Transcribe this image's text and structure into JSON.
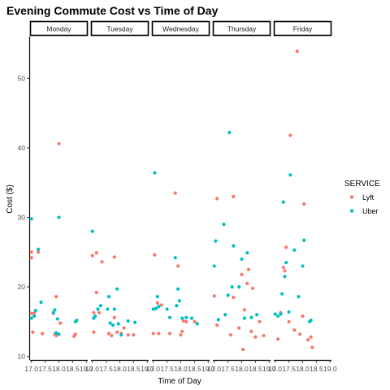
{
  "chart_data": {
    "type": "scatter",
    "title": "Evening Commute Cost vs Time of Day",
    "xlabel": "Time of Day",
    "ylabel": "Cost ($)",
    "ylim": [
      9.5,
      56
    ],
    "y_ticks": [
      10,
      20,
      30,
      40,
      50
    ],
    "xlim": [
      16.95,
      19.05
    ],
    "x_ticks": [
      17.0,
      17.5,
      18.0,
      18.5,
      19.0
    ],
    "x_tick_labels": [
      "17.0",
      "17.5",
      "18.0",
      "18.5",
      "19.0"
    ],
    "grid": false,
    "legend_title": "SERVICE",
    "legend_position": "right",
    "facets": [
      "Monday",
      "Tuesday",
      "Wednesday",
      "Thursday",
      "Friday"
    ],
    "series": [
      {
        "name": "Lyft",
        "color": "#F8766D",
        "points": [
          {
            "facet": 0,
            "x": 17.0,
            "y": 24.2
          },
          {
            "facet": 0,
            "x": 17.0,
            "y": 25.0
          },
          {
            "facet": 0,
            "x": 17.0,
            "y": 16.2
          },
          {
            "facet": 0,
            "x": 17.05,
            "y": 13.5
          },
          {
            "facet": 0,
            "x": 17.1,
            "y": 16.2
          },
          {
            "facet": 0,
            "x": 17.25,
            "y": 25.0
          },
          {
            "facet": 0,
            "x": 17.4,
            "y": 13.3
          },
          {
            "facet": 0,
            "x": 17.8,
            "y": 16.2
          },
          {
            "facet": 0,
            "x": 17.85,
            "y": 13.2
          },
          {
            "facet": 0,
            "x": 17.9,
            "y": 18.6
          },
          {
            "facet": 0,
            "x": 17.9,
            "y": 13.0
          },
          {
            "facet": 0,
            "x": 18.0,
            "y": 40.6
          },
          {
            "facet": 0,
            "x": 18.05,
            "y": 14.8
          },
          {
            "facet": 0,
            "x": 18.55,
            "y": 12.9
          },
          {
            "facet": 0,
            "x": 18.6,
            "y": 13.2
          },
          {
            "facet": 1,
            "x": 17.0,
            "y": 24.5
          },
          {
            "facet": 1,
            "x": 17.05,
            "y": 13.5
          },
          {
            "facet": 1,
            "x": 17.05,
            "y": 16.3
          },
          {
            "facet": 1,
            "x": 17.15,
            "y": 24.9
          },
          {
            "facet": 1,
            "x": 17.15,
            "y": 19.2
          },
          {
            "facet": 1,
            "x": 17.25,
            "y": 16.3
          },
          {
            "facet": 1,
            "x": 17.35,
            "y": 23.6
          },
          {
            "facet": 1,
            "x": 17.6,
            "y": 13.3
          },
          {
            "facet": 1,
            "x": 17.7,
            "y": 13.0
          },
          {
            "facet": 1,
            "x": 17.8,
            "y": 24.3
          },
          {
            "facet": 1,
            "x": 17.8,
            "y": 15.6
          },
          {
            "facet": 1,
            "x": 17.9,
            "y": 13.5
          },
          {
            "facet": 1,
            "x": 18.05,
            "y": 13.3
          },
          {
            "facet": 1,
            "x": 18.15,
            "y": 14.1
          },
          {
            "facet": 1,
            "x": 18.3,
            "y": 13.1
          },
          {
            "facet": 1,
            "x": 18.5,
            "y": 13.1
          },
          {
            "facet": 2,
            "x": 17.0,
            "y": 13.3
          },
          {
            "facet": 2,
            "x": 17.05,
            "y": 24.6
          },
          {
            "facet": 2,
            "x": 17.15,
            "y": 17.7
          },
          {
            "facet": 2,
            "x": 17.2,
            "y": 13.3
          },
          {
            "facet": 2,
            "x": 17.3,
            "y": 17.4
          },
          {
            "facet": 2,
            "x": 17.6,
            "y": 13.3
          },
          {
            "facet": 2,
            "x": 17.8,
            "y": 33.5
          },
          {
            "facet": 2,
            "x": 17.9,
            "y": 23.0
          },
          {
            "facet": 2,
            "x": 18.0,
            "y": 13.1
          },
          {
            "facet": 2,
            "x": 18.05,
            "y": 13.6
          },
          {
            "facet": 2,
            "x": 18.1,
            "y": 15.1
          },
          {
            "facet": 2,
            "x": 18.2,
            "y": 15.0
          },
          {
            "facet": 2,
            "x": 18.5,
            "y": 15.0
          },
          {
            "facet": 3,
            "x": 17.0,
            "y": 18.7
          },
          {
            "facet": 3,
            "x": 17.1,
            "y": 32.7
          },
          {
            "facet": 3,
            "x": 17.1,
            "y": 14.5
          },
          {
            "facet": 3,
            "x": 17.4,
            "y": 16.0
          },
          {
            "facet": 3,
            "x": 17.6,
            "y": 13.1
          },
          {
            "facet": 3,
            "x": 17.7,
            "y": 33.0
          },
          {
            "facet": 3,
            "x": 17.7,
            "y": 18.5
          },
          {
            "facet": 3,
            "x": 17.9,
            "y": 14.1
          },
          {
            "facet": 3,
            "x": 18.0,
            "y": 21.8
          },
          {
            "facet": 3,
            "x": 18.05,
            "y": 11.0
          },
          {
            "facet": 3,
            "x": 18.1,
            "y": 16.7
          },
          {
            "facet": 3,
            "x": 18.2,
            "y": 20.5
          },
          {
            "facet": 3,
            "x": 18.25,
            "y": 22.5
          },
          {
            "facet": 3,
            "x": 18.35,
            "y": 13.6
          },
          {
            "facet": 3,
            "x": 18.4,
            "y": 19.8
          },
          {
            "facet": 3,
            "x": 18.5,
            "y": 12.8
          },
          {
            "facet": 3,
            "x": 18.65,
            "y": 15.0
          },
          {
            "facet": 3,
            "x": 18.8,
            "y": 13.0
          },
          {
            "facet": 4,
            "x": 17.1,
            "y": 12.5
          },
          {
            "facet": 4,
            "x": 17.2,
            "y": 16.3
          },
          {
            "facet": 4,
            "x": 17.3,
            "y": 22.8
          },
          {
            "facet": 4,
            "x": 17.35,
            "y": 22.3
          },
          {
            "facet": 4,
            "x": 17.4,
            "y": 25.7
          },
          {
            "facet": 4,
            "x": 17.5,
            "y": 15.0
          },
          {
            "facet": 4,
            "x": 17.55,
            "y": 41.8
          },
          {
            "facet": 4,
            "x": 17.7,
            "y": 13.8
          },
          {
            "facet": 4,
            "x": 17.8,
            "y": 53.9
          },
          {
            "facet": 4,
            "x": 17.9,
            "y": 13.2
          },
          {
            "facet": 4,
            "x": 18.0,
            "y": 15.8
          },
          {
            "facet": 4,
            "x": 18.05,
            "y": 31.9
          },
          {
            "facet": 4,
            "x": 18.2,
            "y": 12.4
          },
          {
            "facet": 4,
            "x": 18.3,
            "y": 12.8
          },
          {
            "facet": 4,
            "x": 18.35,
            "y": 11.3
          }
        ]
      },
      {
        "name": "Uber",
        "color": "#00BFC4",
        "points": [
          {
            "facet": 0,
            "x": 17.0,
            "y": 15.5
          },
          {
            "facet": 0,
            "x": 17.0,
            "y": 29.8
          },
          {
            "facet": 0,
            "x": 17.1,
            "y": 15.8
          },
          {
            "facet": 0,
            "x": 17.15,
            "y": 16.6
          },
          {
            "facet": 0,
            "x": 17.25,
            "y": 25.4
          },
          {
            "facet": 0,
            "x": 17.35,
            "y": 17.8
          },
          {
            "facet": 0,
            "x": 17.8,
            "y": 16.3
          },
          {
            "facet": 0,
            "x": 17.85,
            "y": 16.7
          },
          {
            "facet": 0,
            "x": 17.9,
            "y": 13.4
          },
          {
            "facet": 0,
            "x": 17.95,
            "y": 15.4
          },
          {
            "facet": 0,
            "x": 18.0,
            "y": 30.0
          },
          {
            "facet": 0,
            "x": 18.0,
            "y": 13.2
          },
          {
            "facet": 0,
            "x": 18.6,
            "y": 15.0
          },
          {
            "facet": 0,
            "x": 18.65,
            "y": 15.2
          },
          {
            "facet": 1,
            "x": 17.0,
            "y": 28.0
          },
          {
            "facet": 1,
            "x": 17.05,
            "y": 15.5
          },
          {
            "facet": 1,
            "x": 17.1,
            "y": 15.8
          },
          {
            "facet": 1,
            "x": 17.2,
            "y": 16.8
          },
          {
            "facet": 1,
            "x": 17.3,
            "y": 17.3
          },
          {
            "facet": 1,
            "x": 17.55,
            "y": 16.8
          },
          {
            "facet": 1,
            "x": 17.6,
            "y": 18.6
          },
          {
            "facet": 1,
            "x": 17.65,
            "y": 14.8
          },
          {
            "facet": 1,
            "x": 17.75,
            "y": 14.5
          },
          {
            "facet": 1,
            "x": 17.8,
            "y": 16.8
          },
          {
            "facet": 1,
            "x": 17.9,
            "y": 19.7
          },
          {
            "facet": 1,
            "x": 17.95,
            "y": 14.7
          },
          {
            "facet": 1,
            "x": 18.05,
            "y": 13.1
          },
          {
            "facet": 1,
            "x": 18.3,
            "y": 15.1
          },
          {
            "facet": 1,
            "x": 18.55,
            "y": 14.9
          },
          {
            "facet": 2,
            "x": 17.0,
            "y": 16.8
          },
          {
            "facet": 2,
            "x": 17.05,
            "y": 36.4
          },
          {
            "facet": 2,
            "x": 17.1,
            "y": 16.9
          },
          {
            "facet": 2,
            "x": 17.15,
            "y": 18.6
          },
          {
            "facet": 2,
            "x": 17.2,
            "y": 17.2
          },
          {
            "facet": 2,
            "x": 17.5,
            "y": 16.8
          },
          {
            "facet": 2,
            "x": 17.6,
            "y": 15.6
          },
          {
            "facet": 2,
            "x": 17.8,
            "y": 24.2
          },
          {
            "facet": 2,
            "x": 17.85,
            "y": 17.3
          },
          {
            "facet": 2,
            "x": 17.9,
            "y": 19.7
          },
          {
            "facet": 2,
            "x": 17.95,
            "y": 18.0
          },
          {
            "facet": 2,
            "x": 18.05,
            "y": 15.5
          },
          {
            "facet": 2,
            "x": 18.2,
            "y": 15.6
          },
          {
            "facet": 2,
            "x": 18.4,
            "y": 15.5
          },
          {
            "facet": 2,
            "x": 18.6,
            "y": 14.7
          },
          {
            "facet": 3,
            "x": 17.0,
            "y": 23.0
          },
          {
            "facet": 3,
            "x": 17.05,
            "y": 26.6
          },
          {
            "facet": 3,
            "x": 17.15,
            "y": 15.3
          },
          {
            "facet": 3,
            "x": 17.35,
            "y": 29.0
          },
          {
            "facet": 3,
            "x": 17.4,
            "y": 16.0
          },
          {
            "facet": 3,
            "x": 17.5,
            "y": 18.8
          },
          {
            "facet": 3,
            "x": 17.55,
            "y": 42.2
          },
          {
            "facet": 3,
            "x": 17.65,
            "y": 20.0
          },
          {
            "facet": 3,
            "x": 17.7,
            "y": 25.9
          },
          {
            "facet": 3,
            "x": 17.9,
            "y": 20.0
          },
          {
            "facet": 3,
            "x": 18.0,
            "y": 24.0
          },
          {
            "facet": 3,
            "x": 18.1,
            "y": 15.5
          },
          {
            "facet": 3,
            "x": 18.2,
            "y": 24.9
          },
          {
            "facet": 3,
            "x": 18.35,
            "y": 15.6
          },
          {
            "facet": 3,
            "x": 18.55,
            "y": 16.0
          },
          {
            "facet": 4,
            "x": 17.0,
            "y": 16.1
          },
          {
            "facet": 4,
            "x": 17.1,
            "y": 15.8
          },
          {
            "facet": 4,
            "x": 17.2,
            "y": 16.1
          },
          {
            "facet": 4,
            "x": 17.25,
            "y": 19.0
          },
          {
            "facet": 4,
            "x": 17.3,
            "y": 32.2
          },
          {
            "facet": 4,
            "x": 17.35,
            "y": 21.5
          },
          {
            "facet": 4,
            "x": 17.4,
            "y": 23.5
          },
          {
            "facet": 4,
            "x": 17.5,
            "y": 16.4
          },
          {
            "facet": 4,
            "x": 17.55,
            "y": 36.1
          },
          {
            "facet": 4,
            "x": 17.7,
            "y": 25.3
          },
          {
            "facet": 4,
            "x": 17.85,
            "y": 18.6
          },
          {
            "facet": 4,
            "x": 18.0,
            "y": 23.0
          },
          {
            "facet": 4,
            "x": 18.05,
            "y": 26.7
          },
          {
            "facet": 4,
            "x": 18.25,
            "y": 15.0
          },
          {
            "facet": 4,
            "x": 18.3,
            "y": 15.2
          }
        ]
      }
    ]
  }
}
